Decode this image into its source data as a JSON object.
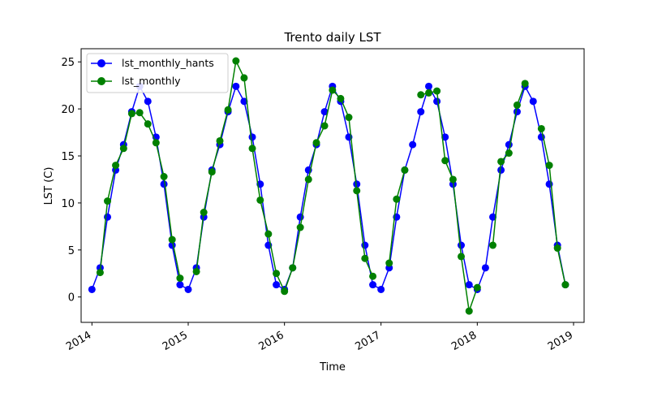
{
  "chart_data": {
    "type": "line",
    "title": "Trento daily LST",
    "xlabel": "Time",
    "ylabel": "LST (C)",
    "xlim": [
      "2013-11-21",
      "2019-02-10"
    ],
    "ylim": [
      -2.7,
      26.4
    ],
    "x_ticks": [
      "2014-01-01",
      "2015-01-01",
      "2016-01-01",
      "2017-01-01",
      "2018-01-01",
      "2019-01-01"
    ],
    "x_tick_labels": [
      "2014",
      "2015",
      "2016",
      "2017",
      "2018",
      "2019"
    ],
    "y_ticks": [
      0,
      5,
      10,
      15,
      20,
      25
    ],
    "y_tick_labels": [
      "0",
      "5",
      "10",
      "15",
      "20",
      "25"
    ],
    "grid": false,
    "legend_position": "top-left",
    "dates": [
      "2014-01-01",
      "2014-02-01",
      "2014-03-01",
      "2014-04-01",
      "2014-05-01",
      "2014-06-01",
      "2014-07-01",
      "2014-08-01",
      "2014-09-01",
      "2014-10-01",
      "2014-11-01",
      "2014-12-01",
      "2015-01-01",
      "2015-02-01",
      "2015-03-01",
      "2015-04-01",
      "2015-05-01",
      "2015-06-01",
      "2015-07-01",
      "2015-08-01",
      "2015-09-01",
      "2015-10-01",
      "2015-11-01",
      "2015-12-01",
      "2016-01-01",
      "2016-02-01",
      "2016-03-01",
      "2016-04-01",
      "2016-05-01",
      "2016-06-01",
      "2016-07-01",
      "2016-08-01",
      "2016-09-01",
      "2016-10-01",
      "2016-11-01",
      "2016-12-01",
      "2017-01-01",
      "2017-02-01",
      "2017-03-01",
      "2017-04-01",
      "2017-05-01",
      "2017-06-01",
      "2017-07-01",
      "2017-08-01",
      "2017-09-01",
      "2017-10-01",
      "2017-11-01",
      "2017-12-01",
      "2018-01-01",
      "2018-02-01",
      "2018-03-01",
      "2018-04-01",
      "2018-05-01",
      "2018-06-01",
      "2018-07-01",
      "2018-08-01",
      "2018-09-01",
      "2018-10-01",
      "2018-11-01",
      "2018-12-01"
    ],
    "series": [
      {
        "name": "lst_monthly_hants",
        "color": "#0000ff",
        "values": [
          0.8,
          3.1,
          8.5,
          13.5,
          16.2,
          19.7,
          22.4,
          20.8,
          17.0,
          12.0,
          5.5,
          1.3,
          0.8,
          3.1,
          8.5,
          13.5,
          16.2,
          19.7,
          22.4,
          20.8,
          17.0,
          12.0,
          5.5,
          1.3,
          0.8,
          3.1,
          8.5,
          13.5,
          16.2,
          19.7,
          22.4,
          20.8,
          17.0,
          12.0,
          5.5,
          1.3,
          0.8,
          3.1,
          8.5,
          13.5,
          16.2,
          19.7,
          22.4,
          20.8,
          17.0,
          12.0,
          5.5,
          1.3,
          0.8,
          3.1,
          8.5,
          13.5,
          16.2,
          19.7,
          22.4,
          20.8,
          17.0,
          12.0,
          5.5,
          1.3
        ]
      },
      {
        "name": "lst_monthly",
        "color": "#008000",
        "values": [
          null,
          2.6,
          10.2,
          14.0,
          15.8,
          19.5,
          19.6,
          18.4,
          16.4,
          12.8,
          6.1,
          2.0,
          null,
          2.7,
          9.0,
          13.3,
          16.6,
          19.9,
          25.1,
          23.3,
          15.8,
          10.3,
          6.7,
          2.5,
          0.6,
          3.1,
          7.4,
          12.5,
          16.4,
          18.2,
          22.0,
          21.1,
          19.1,
          11.3,
          4.1,
          2.2,
          null,
          3.6,
          10.4,
          13.5,
          null,
          21.5,
          21.7,
          21.9,
          14.5,
          12.5,
          4.3,
          -1.5,
          1.0,
          null,
          5.5,
          14.4,
          15.3,
          20.4,
          22.7,
          null,
          17.9,
          14.0,
          5.2,
          1.3
        ]
      }
    ]
  }
}
